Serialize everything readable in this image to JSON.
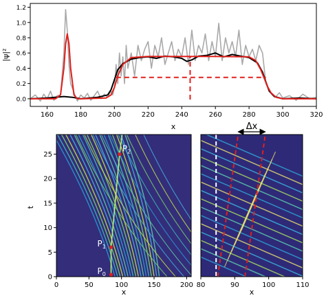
{
  "chart_data": [
    {
      "type": "line",
      "panel": "top",
      "xlabel": "x",
      "ylabel": "|ψ|²",
      "xlim": [
        150,
        320
      ],
      "ylim": [
        -0.1,
        1.25
      ],
      "x_ticks": [
        160,
        180,
        200,
        220,
        240,
        260,
        280,
        300,
        320
      ],
      "y_ticks": [
        0.0,
        0.2,
        0.4,
        0.6,
        0.8,
        1.0,
        1.2
      ],
      "series": [
        {
          "color": "#a9a9a9",
          "style": "solid",
          "x": [
            150,
            153,
            156,
            158,
            160,
            162,
            164,
            166,
            168,
            170,
            171,
            172,
            173,
            174,
            176,
            178,
            180,
            182,
            184,
            186,
            188,
            190,
            192,
            194,
            196,
            198,
            199,
            200,
            201,
            202,
            203,
            204,
            205,
            206,
            207,
            208,
            210,
            212,
            214,
            216,
            218,
            220,
            222,
            224,
            226,
            228,
            230,
            232,
            234,
            236,
            238,
            240,
            242,
            244,
            246,
            248,
            250,
            252,
            254,
            256,
            258,
            260,
            262,
            264,
            266,
            268,
            270,
            272,
            274,
            276,
            278,
            280,
            282,
            284,
            286,
            288,
            290,
            292,
            294,
            296,
            298,
            300,
            304,
            308,
            312,
            316,
            320
          ],
          "y": [
            0.0,
            0.05,
            -0.03,
            0.06,
            0.0,
            0.1,
            -0.02,
            0.04,
            0.05,
            0.6,
            1.17,
            0.9,
            0.45,
            0.2,
            0.08,
            -0.03,
            0.05,
            0.01,
            0.07,
            -0.02,
            0.04,
            0.1,
            0.0,
            0.06,
            0.02,
            0.1,
            0.05,
            0.15,
            0.45,
            0.2,
            0.6,
            0.3,
            0.55,
            0.2,
            0.7,
            0.4,
            0.6,
            0.3,
            0.7,
            0.5,
            0.65,
            0.75,
            0.4,
            0.7,
            0.55,
            0.8,
            0.45,
            0.6,
            0.75,
            0.5,
            0.65,
            0.55,
            0.8,
            0.45,
            0.9,
            0.5,
            0.7,
            0.6,
            0.85,
            0.5,
            0.75,
            0.55,
            0.99,
            0.5,
            0.8,
            0.6,
            0.75,
            0.55,
            0.9,
            0.45,
            0.7,
            0.55,
            0.65,
            0.5,
            0.7,
            0.6,
            0.2,
            0.1,
            0.05,
            0.03,
            0.08,
            0.01,
            0.04,
            -0.02,
            0.06,
            0.0,
            0.02
          ]
        },
        {
          "color": "#000000",
          "style": "solid",
          "x": [
            150,
            160,
            170,
            175,
            180,
            190,
            196,
            198,
            200,
            202,
            205,
            210,
            215,
            220,
            225,
            230,
            235,
            240,
            243,
            246,
            250,
            255,
            260,
            265,
            270,
            275,
            280,
            285,
            288,
            290,
            292,
            295,
            300,
            310,
            320
          ],
          "y": [
            0.0,
            0.01,
            0.03,
            0.02,
            0.0,
            0.02,
            0.05,
            0.12,
            0.25,
            0.38,
            0.46,
            0.52,
            0.54,
            0.55,
            0.53,
            0.56,
            0.55,
            0.53,
            0.49,
            0.51,
            0.56,
            0.57,
            0.6,
            0.55,
            0.58,
            0.56,
            0.54,
            0.47,
            0.35,
            0.22,
            0.1,
            0.03,
            0.0,
            0.01,
            0.0
          ]
        },
        {
          "color": "#e0201c",
          "style": "solid",
          "x": [
            150,
            165,
            168,
            170,
            171,
            172,
            173,
            174,
            176,
            178,
            180,
            195,
            198,
            200,
            202,
            205,
            210,
            220,
            240,
            260,
            280,
            284,
            287,
            289,
            291,
            293,
            296,
            300,
            320
          ],
          "y": [
            0.0,
            0.0,
            0.05,
            0.4,
            0.72,
            0.85,
            0.72,
            0.4,
            0.05,
            0.0,
            0.0,
            0.01,
            0.05,
            0.15,
            0.3,
            0.45,
            0.54,
            0.555,
            0.555,
            0.555,
            0.55,
            0.5,
            0.38,
            0.27,
            0.16,
            0.08,
            0.02,
            0.0,
            0.0
          ]
        },
        {
          "color": "#e0201c",
          "style": "dashed",
          "x": [
            201,
            290
          ],
          "y": [
            0.28,
            0.28
          ]
        }
      ],
      "vlines": [
        {
          "x": 245,
          "y_from": -0.01,
          "y_to": 0.55,
          "color": "#e0201c",
          "style": "dashed"
        }
      ]
    },
    {
      "type": "heatmap",
      "panel": "bottom-left",
      "xlabel": "x",
      "ylabel": "t",
      "xlim": [
        0,
        207
      ],
      "ylim": [
        0,
        29
      ],
      "x_ticks": [
        0,
        50,
        100,
        150,
        200
      ],
      "y_ticks": [
        0,
        5,
        10,
        15,
        20,
        25
      ],
      "points": [
        {
          "label": "P",
          "sub": "0",
          "x": 84,
          "y": 0.4
        },
        {
          "label": "P",
          "sub": "1",
          "x": 84,
          "y": 6.0
        },
        {
          "label": "P",
          "sub": "2",
          "x": 97,
          "y": 25.0
        }
      ]
    },
    {
      "type": "heatmap",
      "panel": "bottom-right",
      "xlabel": "x",
      "xlim": [
        80,
        110
      ],
      "ylim": [
        0,
        29
      ],
      "x_ticks": [
        80,
        90,
        100,
        110
      ],
      "annotation": "Δx",
      "vlines": [
        {
          "x": 84.5,
          "color": "#ffffff",
          "style": "dashed"
        }
      ],
      "slanted_lines": [
        {
          "x0": 85,
          "y0": 0,
          "x1": 91,
          "y1": 29,
          "color": "#e0201c",
          "style": "dashed"
        },
        {
          "x0": 93,
          "y0": 0,
          "x1": 99,
          "y1": 29,
          "color": "#e0201c",
          "style": "dashed"
        }
      ],
      "delta_arrow": {
        "x_from": 91,
        "x_to": 99
      }
    }
  ]
}
